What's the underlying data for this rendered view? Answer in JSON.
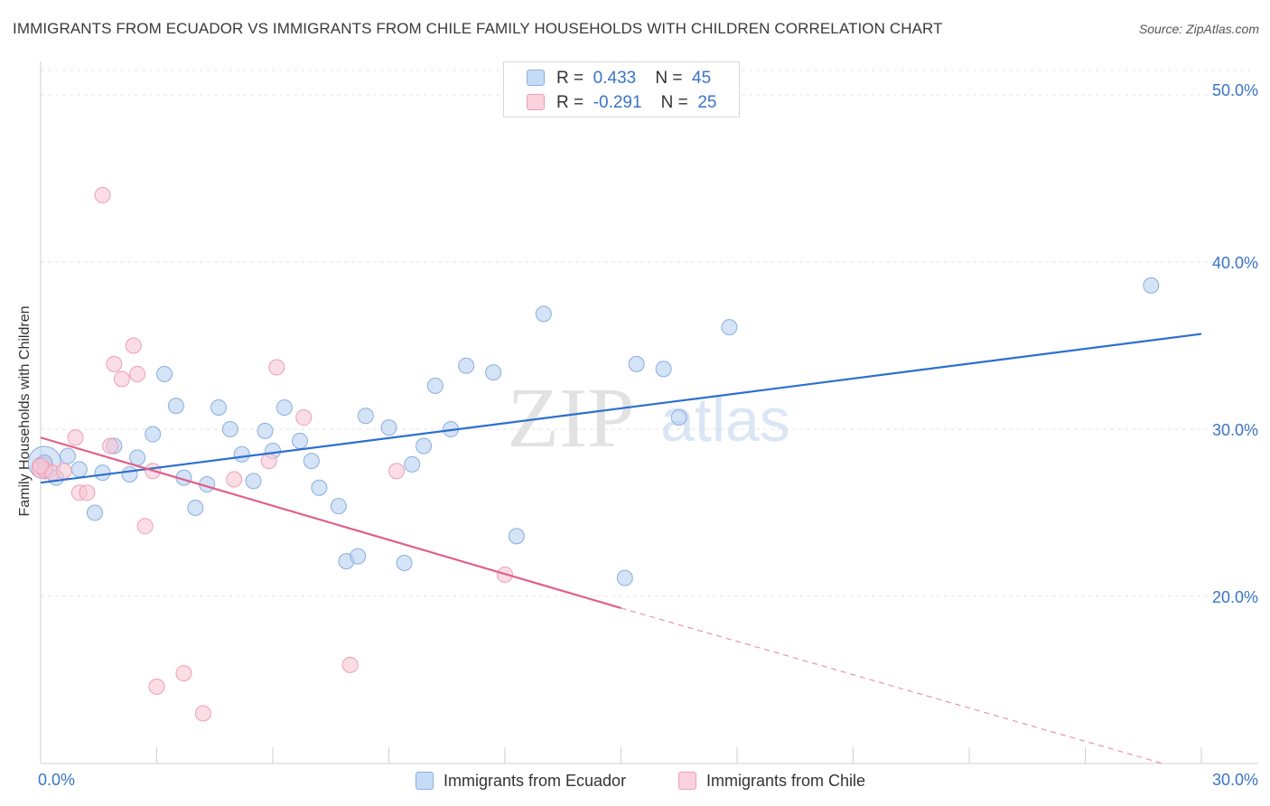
{
  "title": "IMMIGRANTS FROM ECUADOR VS IMMIGRANTS FROM CHILE FAMILY HOUSEHOLDS WITH CHILDREN CORRELATION CHART",
  "source": "Source: ZipAtlas.com",
  "watermark": {
    "zip": "ZIP",
    "atlas": "atlas"
  },
  "legend": {
    "rows": [
      {
        "r_label": "R =",
        "r_value": "0.433",
        "n_label": "N =",
        "n_value": "45"
      },
      {
        "r_label": "R =",
        "r_value": "-0.291",
        "n_label": "N =",
        "n_value": "25"
      }
    ]
  },
  "colors": {
    "ecuador_fill": "#b7d0f0",
    "ecuador_stroke": "#8aaee0",
    "ecuador_line": "#2c6fcf",
    "chile_fill": "#f9c6d4",
    "chile_stroke": "#ee9fb6",
    "chile_line": "#e0608b",
    "tick_label": "#3a74c8",
    "grid": "#e4e4e4"
  },
  "chart_data": {
    "type": "scatter",
    "title": "IMMIGRANTS FROM ECUADOR VS IMMIGRANTS FROM CHILE FAMILY HOUSEHOLDS WITH CHILDREN CORRELATION CHART",
    "xlabel": "",
    "ylabel": "Family Households with Children",
    "xlim": [
      0,
      30
    ],
    "ylim": [
      10,
      52
    ],
    "x_tick_labels": [
      "0.0%",
      "30.0%"
    ],
    "y_ticks": [
      20,
      30,
      40,
      50
    ],
    "y_tick_labels": [
      "20.0%",
      "30.0%",
      "40.0%",
      "50.0%"
    ],
    "grid": true,
    "series": [
      {
        "name": "Immigrants from Ecuador",
        "r": 0.433,
        "n": 45,
        "trend": {
          "x": [
            0,
            30
          ],
          "y": [
            26.8,
            35.7
          ]
        },
        "points": [
          {
            "x": 0.1,
            "y": 28.0
          },
          {
            "x": 0.4,
            "y": 27.1
          },
          {
            "x": 0.7,
            "y": 28.4
          },
          {
            "x": 1.0,
            "y": 27.6
          },
          {
            "x": 1.4,
            "y": 25.0
          },
          {
            "x": 1.6,
            "y": 27.4
          },
          {
            "x": 1.9,
            "y": 29.0
          },
          {
            "x": 2.3,
            "y": 27.3
          },
          {
            "x": 2.5,
            "y": 28.3
          },
          {
            "x": 2.9,
            "y": 29.7
          },
          {
            "x": 3.2,
            "y": 33.3
          },
          {
            "x": 3.5,
            "y": 31.4
          },
          {
            "x": 3.7,
            "y": 27.1
          },
          {
            "x": 4.0,
            "y": 25.3
          },
          {
            "x": 4.3,
            "y": 26.7
          },
          {
            "x": 4.6,
            "y": 31.3
          },
          {
            "x": 4.9,
            "y": 30.0
          },
          {
            "x": 5.2,
            "y": 28.5
          },
          {
            "x": 5.5,
            "y": 26.9
          },
          {
            "x": 5.8,
            "y": 29.9
          },
          {
            "x": 6.0,
            "y": 28.7
          },
          {
            "x": 6.3,
            "y": 31.3
          },
          {
            "x": 6.7,
            "y": 29.3
          },
          {
            "x": 7.0,
            "y": 28.1
          },
          {
            "x": 7.2,
            "y": 26.5
          },
          {
            "x": 7.7,
            "y": 25.4
          },
          {
            "x": 7.9,
            "y": 22.1
          },
          {
            "x": 8.2,
            "y": 22.4
          },
          {
            "x": 8.4,
            "y": 30.8
          },
          {
            "x": 9.0,
            "y": 30.1
          },
          {
            "x": 9.4,
            "y": 22.0
          },
          {
            "x": 9.6,
            "y": 27.9
          },
          {
            "x": 9.9,
            "y": 29.0
          },
          {
            "x": 10.2,
            "y": 32.6
          },
          {
            "x": 10.6,
            "y": 30.0
          },
          {
            "x": 11.0,
            "y": 33.8
          },
          {
            "x": 11.7,
            "y": 33.4
          },
          {
            "x": 12.3,
            "y": 23.6
          },
          {
            "x": 13.0,
            "y": 36.9
          },
          {
            "x": 15.1,
            "y": 21.1
          },
          {
            "x": 15.4,
            "y": 33.9
          },
          {
            "x": 16.1,
            "y": 33.6
          },
          {
            "x": 16.5,
            "y": 30.7
          },
          {
            "x": 17.8,
            "y": 36.1
          },
          {
            "x": 28.7,
            "y": 38.6
          }
        ]
      },
      {
        "name": "Immigrants from Chile",
        "r": -0.291,
        "n": 25,
        "trend": {
          "x": [
            0,
            15
          ],
          "y": [
            29.5,
            19.3
          ]
        },
        "trend_dashed": {
          "x": [
            15,
            29.0
          ],
          "y": [
            19.3,
            10.0
          ]
        },
        "points": [
          {
            "x": 0.1,
            "y": 27.6
          },
          {
            "x": 0.3,
            "y": 27.4
          },
          {
            "x": 0.6,
            "y": 27.5
          },
          {
            "x": 0.9,
            "y": 29.5
          },
          {
            "x": 1.0,
            "y": 26.2
          },
          {
            "x": 1.2,
            "y": 26.2
          },
          {
            "x": 1.6,
            "y": 44.0
          },
          {
            "x": 1.8,
            "y": 29.0
          },
          {
            "x": 1.9,
            "y": 33.9
          },
          {
            "x": 2.1,
            "y": 33.0
          },
          {
            "x": 2.4,
            "y": 35.0
          },
          {
            "x": 2.5,
            "y": 33.3
          },
          {
            "x": 2.7,
            "y": 24.2
          },
          {
            "x": 2.9,
            "y": 27.5
          },
          {
            "x": 3.0,
            "y": 14.6
          },
          {
            "x": 3.7,
            "y": 15.4
          },
          {
            "x": 4.2,
            "y": 13.0
          },
          {
            "x": 5.0,
            "y": 27.0
          },
          {
            "x": 5.9,
            "y": 28.1
          },
          {
            "x": 6.1,
            "y": 33.7
          },
          {
            "x": 6.8,
            "y": 30.7
          },
          {
            "x": 8.0,
            "y": 15.9
          },
          {
            "x": 9.2,
            "y": 27.5
          },
          {
            "x": 12.0,
            "y": 21.3
          },
          {
            "x": 0.0,
            "y": 27.8
          }
        ]
      }
    ]
  }
}
